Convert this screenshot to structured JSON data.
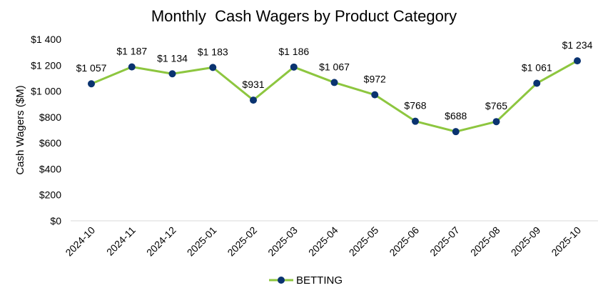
{
  "chart_data": {
    "type": "line",
    "title": "Monthly  Cash Wagers by Product Category",
    "xlabel": "",
    "ylabel": "Cash Wagers ($M)",
    "ylim": [
      0,
      1400
    ],
    "yticks": [
      0,
      200,
      400,
      600,
      800,
      1000,
      1200,
      1400
    ],
    "ytick_labels": [
      "$0",
      "$200",
      "$400",
      "$600",
      "$800",
      "$1 000",
      "$1 200",
      "$1 400"
    ],
    "grid": false,
    "legend_position": "bottom",
    "categories": [
      "2024-10",
      "2024-11",
      "2024-12",
      "2025-01",
      "2025-02",
      "2025-03",
      "2025-04",
      "2025-05",
      "2025-06",
      "2025-07",
      "2025-08",
      "2025-09",
      "2025-10"
    ],
    "series": [
      {
        "name": "BETTING",
        "line_color": "#8dc63f",
        "marker_color": "#0a3370",
        "values": [
          1057,
          1187,
          1134,
          1183,
          931,
          1186,
          1067,
          972,
          768,
          688,
          765,
          1061,
          1234
        ],
        "data_labels": [
          "$1 057",
          "$1 187",
          "$1 134",
          "$1 183",
          "$931",
          "$1 186",
          "$1 067",
          "$972",
          "$768",
          "$688",
          "$765",
          "$1 061",
          "$1 234"
        ]
      }
    ]
  }
}
